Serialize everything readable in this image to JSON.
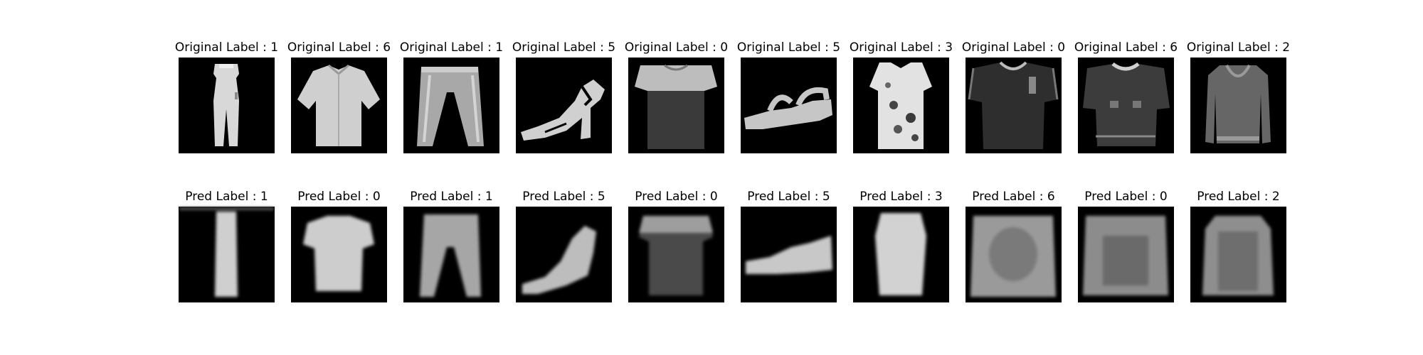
{
  "figure": {
    "original_row": {
      "title_prefix": "Original Label",
      "panels": [
        {
          "title": "Original Label : 1",
          "label": 1,
          "item": "trouser-icon"
        },
        {
          "title": "Original Label : 6",
          "label": 6,
          "item": "shirt-icon"
        },
        {
          "title": "Original Label : 1",
          "label": 1,
          "item": "trouser-icon"
        },
        {
          "title": "Original Label : 5",
          "label": 5,
          "item": "sandal-icon"
        },
        {
          "title": "Original Label : 0",
          "label": 0,
          "item": "tshirt-icon"
        },
        {
          "title": "Original Label : 5",
          "label": 5,
          "item": "sandal-icon"
        },
        {
          "title": "Original Label : 3",
          "label": 3,
          "item": "dress-icon"
        },
        {
          "title": "Original Label : 0",
          "label": 0,
          "item": "tshirt-icon"
        },
        {
          "title": "Original Label : 6",
          "label": 6,
          "item": "shirt-icon"
        },
        {
          "title": "Original Label : 2",
          "label": 2,
          "item": "pullover-icon"
        }
      ]
    },
    "pred_row": {
      "title_prefix": "Pred Label",
      "panels": [
        {
          "title": "Pred Label : 1",
          "label": 1,
          "item": "trouser-icon"
        },
        {
          "title": "Pred Label : 0",
          "label": 0,
          "item": "tshirt-icon"
        },
        {
          "title": "Pred Label : 1",
          "label": 1,
          "item": "trouser-icon"
        },
        {
          "title": "Pred Label : 5",
          "label": 5,
          "item": "sandal-icon"
        },
        {
          "title": "Pred Label : 0",
          "label": 0,
          "item": "tshirt-icon"
        },
        {
          "title": "Pred Label : 5",
          "label": 5,
          "item": "sandal-icon"
        },
        {
          "title": "Pred Label : 3",
          "label": 3,
          "item": "dress-icon"
        },
        {
          "title": "Pred Label : 6",
          "label": 6,
          "item": "shirt-icon"
        },
        {
          "title": "Pred Label : 0",
          "label": 0,
          "item": "tshirt-icon"
        },
        {
          "title": "Pred Label : 2",
          "label": 2,
          "item": "pullover-icon"
        }
      ]
    },
    "colors": {
      "background": "#ffffff",
      "image_background": "#000000",
      "text": "#000000"
    }
  }
}
